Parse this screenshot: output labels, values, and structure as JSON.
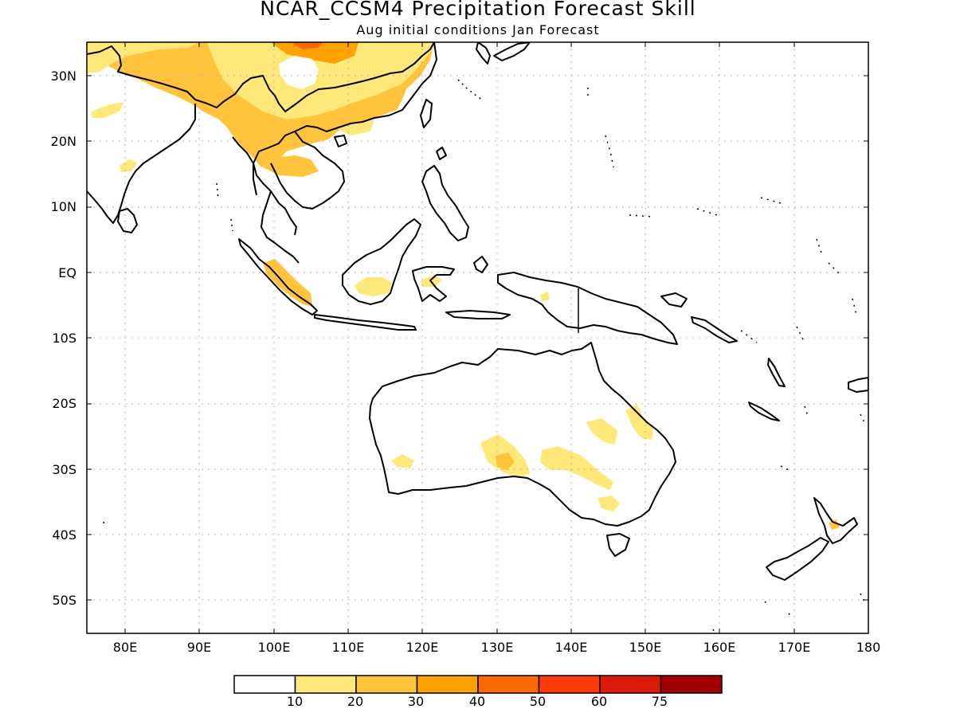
{
  "title": "NCAR_CCSM4 Precipitation Forecast Skill",
  "subtitle": "Aug initial conditions  Jan Forecast",
  "lat_labels": [
    "30N",
    "20N",
    "10N",
    "EQ",
    "10S",
    "20S",
    "30S",
    "40S",
    "50S"
  ],
  "lon_labels": [
    "80E",
    "90E",
    "100E",
    "110E",
    "120E",
    "130E",
    "140E",
    "150E",
    "160E",
    "170E",
    "180"
  ],
  "colorbar": {
    "colors": [
      "#ffffff",
      "#ffe87a",
      "#ffc43c",
      "#ffa200",
      "#ff6a00",
      "#ff3a0a",
      "#dc1a0a",
      "#a00000"
    ],
    "labels": [
      "10",
      "20",
      "30",
      "40",
      "50",
      "60",
      "75"
    ]
  },
  "colors": {
    "coast": "#000000",
    "grid": "#b4b4b4"
  }
}
